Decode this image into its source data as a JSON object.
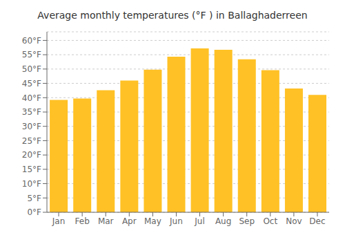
{
  "chart_data": {
    "type": "bar",
    "title": "Average monthly temperatures (°F ) in Ballaghaderreen",
    "categories": [
      "Jan",
      "Feb",
      "Mar",
      "Apr",
      "May",
      "Jun",
      "Jul",
      "Aug",
      "Sep",
      "Oct",
      "Nov",
      "Dec"
    ],
    "values": [
      39.2,
      39.7,
      42.6,
      46.0,
      49.8,
      54.3,
      57.2,
      56.7,
      53.4,
      49.6,
      43.2,
      41.0
    ],
    "color": "#FFC125",
    "ylim": [
      0,
      63
    ],
    "yticks": [
      {
        "value": 0,
        "label": "0°F"
      },
      {
        "value": 5,
        "label": "5°F"
      },
      {
        "value": 10,
        "label": "10°F"
      },
      {
        "value": 15,
        "label": "15°F"
      },
      {
        "value": 20,
        "label": "20°F"
      },
      {
        "value": 25,
        "label": "25°F"
      },
      {
        "value": 30,
        "label": "30°F"
      },
      {
        "value": 35,
        "label": "35°F"
      },
      {
        "value": 40,
        "label": "40°F"
      },
      {
        "value": 45,
        "label": "45°F"
      },
      {
        "value": 50,
        "label": "50°F"
      },
      {
        "value": 55,
        "label": "55°F"
      },
      {
        "value": 60,
        "label": "60°F"
      }
    ],
    "grid": true
  }
}
